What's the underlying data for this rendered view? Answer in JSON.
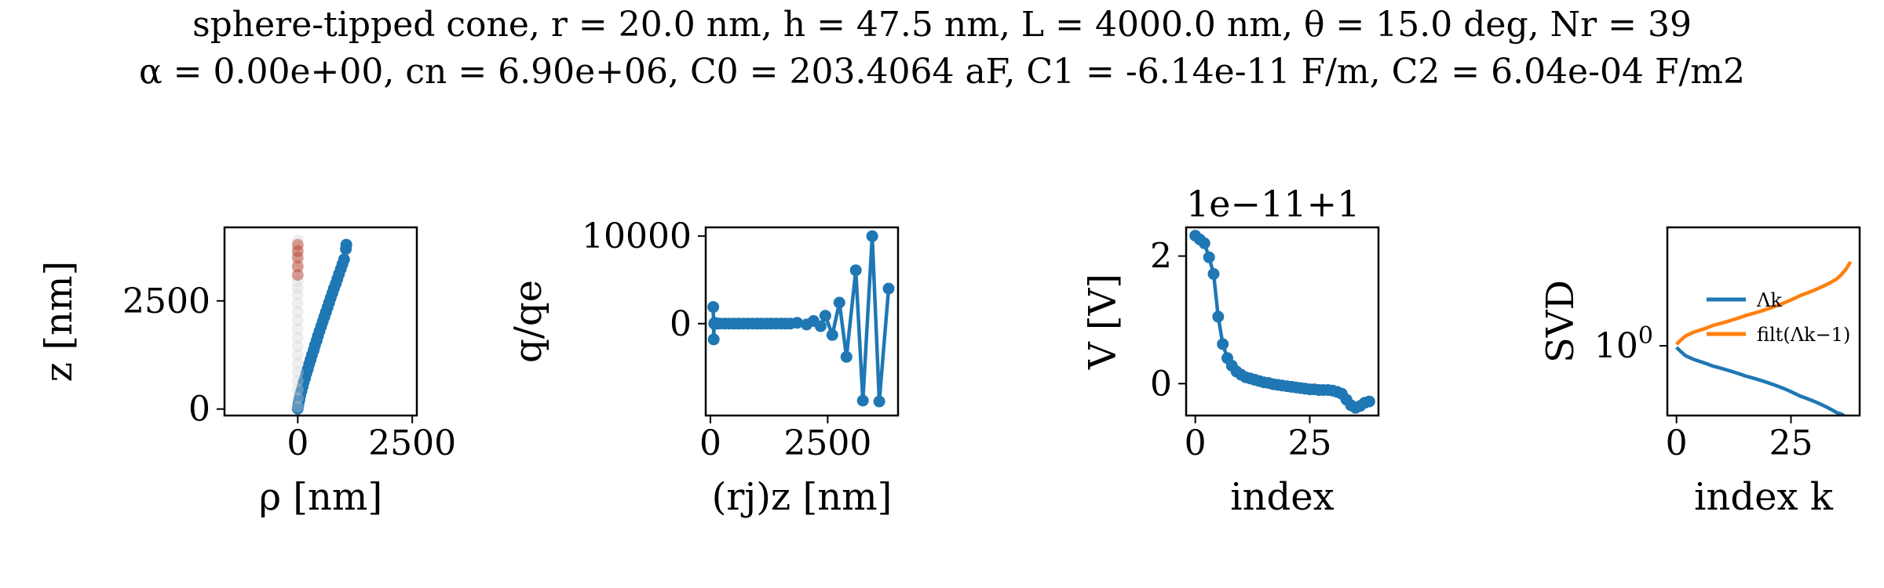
{
  "figure": {
    "title_line1": "sphere-tipped cone, r = 20.0 nm, h = 47.5 nm, L = 4000.0 nm, θ = 15.0 deg, Nr = 39",
    "title_line2": "α = 0.00e+00, cn = 6.90e+06, C0 = 203.4064 aF, C1 = -6.14e-11 F/m, C2 = 6.04e-04 F/m2"
  },
  "colors": {
    "blue": "#1f77b4",
    "orange": "#ff7f0e",
    "axes": "#000000"
  },
  "chart_data": [
    {
      "type": "scatter",
      "xlabel": "ρ [nm]",
      "ylabel": "z [nm]",
      "xticks": [
        0,
        2500
      ],
      "xtick_labels": [
        "0",
        "2500"
      ],
      "yticks": [
        0,
        2500
      ],
      "ytick_labels": [
        "0",
        "2500"
      ],
      "xlim": [
        -1600,
        2600
      ],
      "ylim": [
        -150,
        4200
      ],
      "series": [
        {
          "color": "#1f77b4",
          "x": [
            0,
            10,
            20,
            35,
            55,
            80,
            105,
            130,
            160,
            190,
            220,
            250,
            280,
            310,
            345,
            375,
            410,
            440,
            475,
            510,
            545,
            580,
            615,
            650,
            685,
            720,
            755,
            790,
            830,
            865,
            900,
            940,
            975,
            1010,
            1050,
            1060
          ],
          "y": [
            10,
            80,
            150,
            220,
            320,
            420,
            520,
            620,
            720,
            830,
            930,
            1040,
            1140,
            1250,
            1360,
            1470,
            1580,
            1690,
            1800,
            1910,
            2020,
            2130,
            2240,
            2350,
            2460,
            2570,
            2680,
            2790,
            2900,
            3010,
            3120,
            3240,
            3350,
            3460,
            3700,
            3800
          ]
        },
        {
          "color": "#d0d0d0",
          "x": [
            0,
            0,
            0,
            0,
            0,
            0,
            0,
            0,
            0,
            0,
            0,
            0,
            0,
            0,
            0,
            0,
            0,
            0,
            0,
            0,
            0,
            0,
            0
          ],
          "y": [
            50,
            250,
            450,
            650,
            850,
            1050,
            1250,
            1450,
            1650,
            1850,
            2050,
            2250,
            2450,
            2650,
            2800,
            2950,
            3100,
            3250,
            3400,
            3550,
            3650,
            3750,
            3900
          ]
        },
        {
          "color": "#c0392b",
          "x": [
            0,
            0,
            0,
            0,
            0
          ],
          "y": [
            3100,
            3300,
            3500,
            3650,
            3800
          ]
        }
      ]
    },
    {
      "type": "line",
      "xlabel": "(rj)z [nm]",
      "ylabel": "q/qe",
      "xticks": [
        0,
        2500
      ],
      "xtick_labels": [
        "0",
        "2500"
      ],
      "yticks": [
        0,
        10000
      ],
      "ytick_labels": [
        "0",
        "10000"
      ],
      "xlim": [
        -100,
        4000
      ],
      "ylim": [
        -10500,
        11000
      ],
      "series": [
        {
          "color": "#1f77b4",
          "x": [
            60,
            70,
            80,
            90,
            100,
            150,
            200,
            300,
            400,
            500,
            600,
            700,
            800,
            900,
            1000,
            1100,
            1200,
            1300,
            1400,
            1500,
            1600,
            1700,
            1850,
            2050,
            2200,
            2350,
            2450,
            2600,
            2750,
            2900,
            3100,
            3250,
            3450,
            3600,
            3800
          ],
          "y": [
            1900,
            -1800,
            0,
            100,
            0,
            0,
            0,
            0,
            0,
            0,
            0,
            0,
            0,
            0,
            0,
            0,
            0,
            0,
            0,
            0,
            0,
            0,
            100,
            -100,
            300,
            -300,
            900,
            -1300,
            2400,
            -3800,
            6100,
            -8800,
            10000,
            -8900,
            4000
          ]
        }
      ]
    },
    {
      "type": "line",
      "xlabel": "index",
      "ylabel": "V [V]",
      "offset_label": "1e−11+1",
      "xticks": [
        0,
        25
      ],
      "xtick_labels": [
        "0",
        "25"
      ],
      "yticks": [
        0,
        2
      ],
      "ytick_labels": [
        "0",
        "2"
      ],
      "xlim": [
        -2,
        40
      ],
      "ylim": [
        -0.5,
        2.45
      ],
      "series": [
        {
          "color": "#1f77b4",
          "x": [
            0,
            1,
            2,
            3,
            4,
            5,
            6,
            7,
            8,
            9,
            10,
            11,
            12,
            13,
            14,
            15,
            16,
            17,
            18,
            19,
            20,
            21,
            22,
            23,
            24,
            25,
            26,
            27,
            28,
            29,
            30,
            31,
            32,
            33,
            34,
            35,
            36,
            37,
            38
          ],
          "y": [
            2.32,
            2.26,
            2.2,
            1.98,
            1.72,
            1.05,
            0.62,
            0.4,
            0.28,
            0.19,
            0.14,
            0.1,
            0.08,
            0.06,
            0.04,
            0.02,
            0.01,
            -0.01,
            -0.02,
            -0.03,
            -0.04,
            -0.05,
            -0.06,
            -0.07,
            -0.08,
            -0.09,
            -0.09,
            -0.1,
            -0.1,
            -0.1,
            -0.11,
            -0.13,
            -0.16,
            -0.25,
            -0.34,
            -0.38,
            -0.35,
            -0.3,
            -0.28
          ]
        }
      ]
    },
    {
      "type": "line",
      "xlabel": "index k",
      "ylabel": "SVD",
      "yscale": "log",
      "xticks": [
        0,
        25
      ],
      "xtick_labels": [
        "0",
        "25"
      ],
      "yticks": [
        1
      ],
      "ytick_labels": [
        "10^0"
      ],
      "xlim": [
        -2,
        40
      ],
      "ylim": [
        0.1,
        50
      ],
      "legend": "center-right",
      "series": [
        {
          "name": "Λk",
          "color": "#1f77b4",
          "x": [
            0,
            1,
            2,
            3,
            4,
            5,
            6,
            7,
            8,
            9,
            10,
            11,
            12,
            13,
            14,
            15,
            16,
            17,
            18,
            19,
            20,
            21,
            22,
            23,
            24,
            25,
            26,
            27,
            28,
            29,
            30,
            31,
            32,
            33,
            34,
            35,
            36,
            37,
            38
          ],
          "y": [
            0.95,
            0.82,
            0.72,
            0.67,
            0.63,
            0.6,
            0.57,
            0.54,
            0.51,
            0.49,
            0.47,
            0.45,
            0.43,
            0.41,
            0.39,
            0.37,
            0.355,
            0.34,
            0.325,
            0.31,
            0.295,
            0.28,
            0.265,
            0.25,
            0.235,
            0.22,
            0.205,
            0.19,
            0.18,
            0.17,
            0.16,
            0.15,
            0.14,
            0.13,
            0.12,
            0.11,
            0.105,
            0.095,
            0.085
          ]
        },
        {
          "name": "filt(Λk−1)",
          "color": "#ff7f0e",
          "x": [
            0,
            1,
            2,
            3,
            4,
            5,
            6,
            7,
            8,
            9,
            10,
            11,
            12,
            13,
            14,
            15,
            16,
            17,
            18,
            19,
            20,
            21,
            22,
            23,
            24,
            25,
            26,
            27,
            28,
            29,
            30,
            31,
            32,
            33,
            34,
            35,
            36,
            37,
            38
          ],
          "y": [
            1.05,
            1.22,
            1.39,
            1.49,
            1.59,
            1.67,
            1.75,
            1.85,
            1.96,
            2.04,
            2.13,
            2.22,
            2.33,
            2.44,
            2.56,
            2.7,
            2.82,
            2.94,
            3.08,
            3.23,
            3.39,
            3.57,
            3.77,
            4.0,
            4.26,
            4.55,
            4.88,
            5.26,
            5.56,
            5.88,
            6.25,
            6.67,
            7.14,
            7.69,
            8.33,
            9.09,
            10.5,
            12.5,
            16.0
          ]
        }
      ]
    }
  ]
}
